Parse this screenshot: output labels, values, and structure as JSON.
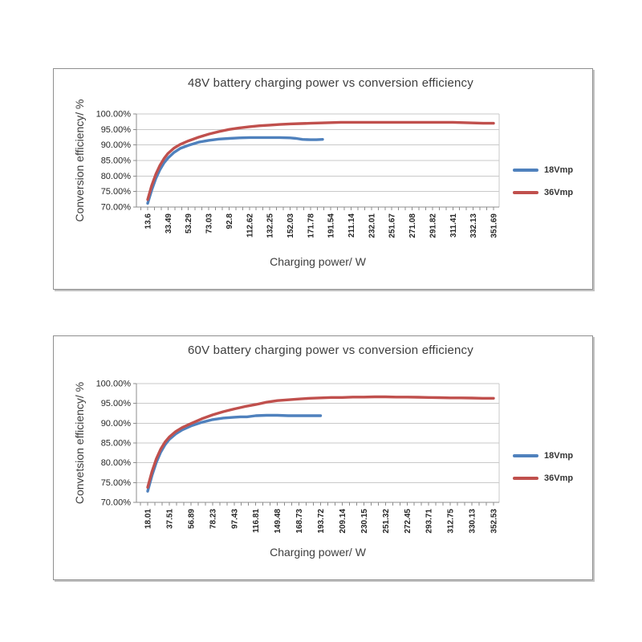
{
  "chart_data": [
    {
      "type": "line",
      "title": "48V battery charging power vs conversion efficiency",
      "xlabel": "Charging power/ W",
      "ylabel": "Conversion efficiency/ %",
      "ylim": [
        70,
        100
      ],
      "y_tick_step": 5,
      "y_ticks": [
        "100.00%",
        "95.00%",
        "90.00%",
        "85.00%",
        "80.00%",
        "75.00%",
        "70.00%"
      ],
      "grid": true,
      "legend_position": "right",
      "categories": [
        "13.6",
        "33.49",
        "53.29",
        "73.03",
        "92.8",
        "112.62",
        "132.25",
        "152.03",
        "171.78",
        "191.54",
        "211.14",
        "232.01",
        "251.67",
        "271.08",
        "291.82",
        "311.41",
        "332.13",
        "351.69"
      ],
      "series": [
        {
          "name": "18Vmp",
          "color": "#4F81BD",
          "points": [
            [
              13.6,
              71.2
            ],
            [
              17.6,
              75.5
            ],
            [
              21.6,
              79.2
            ],
            [
              25.5,
              82.0
            ],
            [
              29.5,
              84.2
            ],
            [
              33.49,
              85.8
            ],
            [
              39.4,
              87.6
            ],
            [
              45.4,
              88.9
            ],
            [
              53.29,
              89.9
            ],
            [
              63.2,
              90.9
            ],
            [
              73.03,
              91.5
            ],
            [
              82.9,
              91.9
            ],
            [
              92.8,
              92.1
            ],
            [
              102.7,
              92.3
            ],
            [
              112.62,
              92.4
            ],
            [
              122.4,
              92.4
            ],
            [
              132.25,
              92.4
            ],
            [
              142.1,
              92.4
            ],
            [
              152.03,
              92.3
            ],
            [
              158,
              92.1
            ],
            [
              164,
              91.8
            ],
            [
              171.78,
              91.7
            ],
            [
              177.7,
              91.7
            ],
            [
              183.6,
              91.8
            ]
          ]
        },
        {
          "name": "36Vmp",
          "color": "#C0504D",
          "points": [
            [
              13.6,
              72.4
            ],
            [
              17.6,
              77.0
            ],
            [
              21.6,
              80.6
            ],
            [
              25.5,
              83.4
            ],
            [
              29.5,
              85.6
            ],
            [
              33.49,
              87.3
            ],
            [
              39.4,
              89.0
            ],
            [
              45.4,
              90.2
            ],
            [
              53.29,
              91.3
            ],
            [
              63.2,
              92.5
            ],
            [
              73.03,
              93.5
            ],
            [
              82.9,
              94.3
            ],
            [
              92.8,
              95.0
            ],
            [
              102.7,
              95.5
            ],
            [
              112.62,
              95.9
            ],
            [
              122.4,
              96.2
            ],
            [
              132.25,
              96.4
            ],
            [
              142.1,
              96.6
            ],
            [
              152.03,
              96.8
            ],
            [
              161.9,
              96.9
            ],
            [
              171.78,
              97.0
            ],
            [
              181.7,
              97.1
            ],
            [
              191.54,
              97.2
            ],
            [
              201.3,
              97.3
            ],
            [
              211.14,
              97.3
            ],
            [
              232.01,
              97.3
            ],
            [
              251.67,
              97.3
            ],
            [
              271.08,
              97.3
            ],
            [
              291.82,
              97.3
            ],
            [
              301.6,
              97.3
            ],
            [
              311.41,
              97.3
            ],
            [
              321.8,
              97.2
            ],
            [
              332.13,
              97.1
            ],
            [
              341.9,
              97.0
            ],
            [
              351.69,
              97.0
            ]
          ]
        }
      ]
    },
    {
      "type": "line",
      "title": "60V battery charging power vs conversion efficiency",
      "xlabel": "Charging power/ W",
      "ylabel": "Convetsion efficiency/ %",
      "ylim": [
        70,
        100
      ],
      "y_tick_step": 5,
      "y_ticks": [
        "100.00%",
        "95.00%",
        "90.00%",
        "85.00%",
        "80.00%",
        "75.00%",
        "70.00%"
      ],
      "grid": true,
      "legend_position": "right",
      "categories": [
        "18.01",
        "37.51",
        "56.89",
        "78.23",
        "97.43",
        "116.81",
        "149.48",
        "168.73",
        "193.72",
        "209.14",
        "230.15",
        "251.32",
        "272.45",
        "293.71",
        "312.75",
        "330.13",
        "352.53"
      ],
      "series": [
        {
          "name": "18Vmp",
          "color": "#4F81BD",
          "points": [
            [
              18.01,
              72.8
            ],
            [
              21.9,
              76.8
            ],
            [
              25.8,
              80.1
            ],
            [
              29.7,
              82.6
            ],
            [
              33.6,
              84.5
            ],
            [
              37.51,
              85.9
            ],
            [
              43.3,
              87.3
            ],
            [
              49.1,
              88.3
            ],
            [
              56.89,
              89.3
            ],
            [
              67.6,
              90.2
            ],
            [
              78.23,
              90.9
            ],
            [
              87.8,
              91.3
            ],
            [
              97.43,
              91.5
            ],
            [
              103.2,
              91.6
            ],
            [
              109,
              91.6
            ],
            [
              116.81,
              91.9
            ],
            [
              133.1,
              92.0
            ],
            [
              149.48,
              92.0
            ],
            [
              159.1,
              91.9
            ],
            [
              168.73,
              91.9
            ],
            [
              181.2,
              91.9
            ],
            [
              193.72,
              91.9
            ]
          ]
        },
        {
          "name": "36Vmp",
          "color": "#C0504D",
          "points": [
            [
              18.01,
              73.8
            ],
            [
              21.9,
              77.8
            ],
            [
              25.8,
              81.0
            ],
            [
              29.7,
              83.4
            ],
            [
              33.6,
              85.2
            ],
            [
              37.51,
              86.5
            ],
            [
              43.3,
              87.9
            ],
            [
              49.1,
              88.9
            ],
            [
              56.89,
              89.9
            ],
            [
              67.6,
              91.1
            ],
            [
              78.23,
              92.1
            ],
            [
              87.8,
              92.9
            ],
            [
              97.43,
              93.6
            ],
            [
              107,
              94.2
            ],
            [
              116.81,
              94.7
            ],
            [
              133.1,
              95.3
            ],
            [
              149.48,
              95.7
            ],
            [
              159.1,
              95.9
            ],
            [
              168.73,
              96.1
            ],
            [
              181.2,
              96.3
            ],
            [
              193.72,
              96.4
            ],
            [
              201.4,
              96.5
            ],
            [
              209.14,
              96.5
            ],
            [
              219.6,
              96.6
            ],
            [
              230.15,
              96.6
            ],
            [
              240.7,
              96.65
            ],
            [
              251.32,
              96.65
            ],
            [
              261.9,
              96.6
            ],
            [
              272.45,
              96.6
            ],
            [
              283.1,
              96.55
            ],
            [
              293.71,
              96.5
            ],
            [
              303.2,
              96.45
            ],
            [
              312.75,
              96.4
            ],
            [
              321.4,
              96.4
            ],
            [
              330.13,
              96.35
            ],
            [
              341.3,
              96.3
            ],
            [
              352.53,
              96.3
            ]
          ]
        }
      ]
    }
  ]
}
